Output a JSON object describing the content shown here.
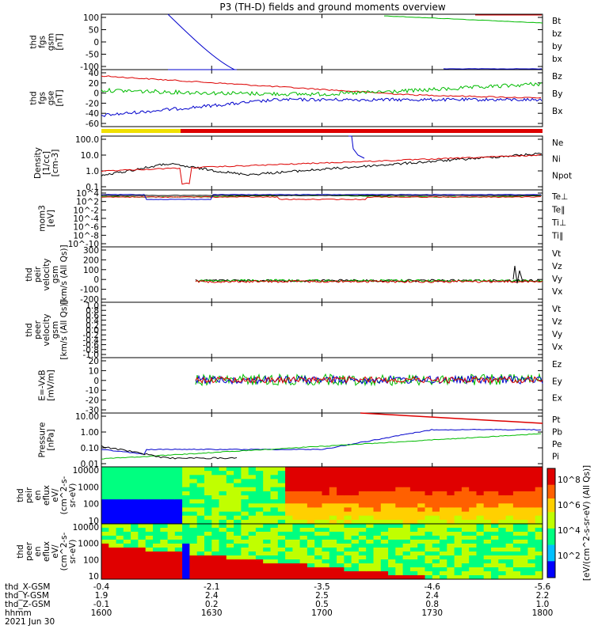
{
  "title": "P3 (TH-D) fields and ground moments overview",
  "chart_data": {
    "type": "line",
    "title": "P3 (TH-D) fields and ground moments overview",
    "date": "2021 Jun 30",
    "x_time_ticks": [
      "1600",
      "1630",
      "1700",
      "1730",
      "1800"
    ],
    "ephemeris": [
      {
        "label": "thd_X-GSM",
        "values": [
          "-0.4",
          "-2.1",
          "-3.5",
          "-4.6",
          "-5.6"
        ]
      },
      {
        "label": "thd_Y-GSM",
        "values": [
          "1.9",
          "2.4",
          "2.5",
          "2.4",
          "2.2"
        ]
      },
      {
        "label": "thd_Z-GSM",
        "values": [
          "-0.1",
          "0.2",
          "0.5",
          "0.8",
          "1.0"
        ]
      },
      {
        "label": "hhmm",
        "values": [
          "1600",
          "1630",
          "1700",
          "1730",
          "1800"
        ]
      }
    ],
    "panels": [
      {
        "ylabel": [
          "thd",
          "fgs",
          "gsm",
          "[nT]"
        ],
        "yticks": [
          "100",
          "50",
          "0",
          "-50",
          "-100"
        ],
        "legend": [
          {
            "text": "Bt",
            "color": "#000000"
          },
          {
            "text": "bz",
            "color": "#dd0000"
          },
          {
            "text": "by",
            "color": "#00bb00"
          },
          {
            "text": "bx",
            "color": "#0000cc"
          }
        ]
      },
      {
        "ylabel": [
          "thd",
          "fgs",
          "gse",
          "[nT]"
        ],
        "yticks": [
          "40",
          "20",
          "0",
          "-20",
          "-40",
          "-60"
        ],
        "legend": [
          {
            "text": "Bz",
            "color": "#dd0000"
          },
          {
            "text": "By",
            "color": "#00bb00"
          },
          {
            "text": "Bx",
            "color": "#0000cc"
          }
        ]
      },
      {
        "ylabel": [
          "Density",
          "[1/cc]",
          "[cm-3]"
        ],
        "yticks": [
          "100.0",
          "10.0",
          "1.0",
          "0.1"
        ],
        "legend": [
          {
            "text": "Ne",
            "color": "#dd0000"
          },
          {
            "text": "Ni",
            "color": "#000000"
          },
          {
            "text": "Npot",
            "color": "#0000cc"
          }
        ]
      },
      {
        "ylabel": [
          "mom3",
          "[eV]"
        ],
        "yticks": [
          "10^4",
          "10^2",
          "10^-2",
          "10^-4",
          "10^-6",
          "10^-8",
          "10^-10"
        ],
        "legend": [
          {
            "text": "Te⊥",
            "color": "#dd0000"
          },
          {
            "text": "Te∥",
            "color": "#000000"
          },
          {
            "text": "Ti⊥",
            "color": "#00bb00"
          },
          {
            "text": "Ti∥",
            "color": "#00bb00"
          }
        ]
      },
      {
        "ylabel": [
          "thd",
          "peir",
          "velocity",
          "gsm",
          "[km/s (All Qs)]"
        ],
        "yticks": [
          "300",
          "200",
          "100",
          "0",
          "-100",
          "-200"
        ],
        "legend": [
          {
            "text": "Vt",
            "color": "#000000"
          },
          {
            "text": "Vz",
            "color": "#dd0000"
          },
          {
            "text": "Vy",
            "color": "#00bb00"
          },
          {
            "text": "Vx",
            "color": "#0000cc"
          }
        ]
      },
      {
        "ylabel": [
          "thd",
          "peer",
          "velocity",
          "gsm",
          "[km/s (All Qs)]"
        ],
        "yticks": [
          "1.0",
          "0.8",
          "0.6",
          "0.4",
          "0.2",
          "0.0",
          "-0.2",
          "-0.4",
          "-0.6",
          "-0.8",
          "-1.0"
        ],
        "legend": [
          {
            "text": "Vt",
            "color": "#000000"
          },
          {
            "text": "Vz",
            "color": "#dd0000"
          },
          {
            "text": "Vy",
            "color": "#00bb00"
          },
          {
            "text": "Vx",
            "color": "#0000cc"
          }
        ]
      },
      {
        "ylabel": [
          "E=-VxB",
          "[mV/m]"
        ],
        "yticks": [
          "20",
          "10",
          "0",
          "-10",
          "-20",
          "-30"
        ],
        "legend": [
          {
            "text": "Ez",
            "color": "#dd0000"
          },
          {
            "text": "Ey",
            "color": "#00bb00"
          },
          {
            "text": "Ex",
            "color": "#0000cc"
          }
        ]
      },
      {
        "ylabel": [
          "Pressure",
          "[nPa]"
        ],
        "yticks": [
          "10.00",
          "1.00",
          "0.10",
          "0.01"
        ],
        "legend": [
          {
            "text": "Pt",
            "color": "#000000"
          },
          {
            "text": "Pb",
            "color": "#dd0000"
          },
          {
            "text": "Pe",
            "color": "#00bb00"
          },
          {
            "text": "Pi",
            "color": "#0000cc"
          }
        ]
      },
      {
        "ylabel": [
          "thd",
          "peir",
          "en",
          "eflux",
          "eV/",
          "(cm^2-s-",
          "sr-eV)"
        ],
        "yticks": [
          "10000",
          "1000",
          "100",
          "10"
        ],
        "legend": []
      },
      {
        "ylabel": [
          "thd",
          "peer",
          "en",
          "eflux",
          "eV/",
          "(cm^2-s-",
          "sr-eV)"
        ],
        "yticks": [
          "10000",
          "1000",
          "100",
          "10"
        ],
        "legend": []
      }
    ],
    "colorbar": {
      "label": "[eV/(cm^2-s-sr-eV) (All Qs)]",
      "ticks": [
        "10^8",
        "10^6",
        "10^4",
        "10^2"
      ]
    }
  },
  "colors": {
    "red": "#dd0000",
    "green": "#00bb00",
    "blue": "#0000cc",
    "black": "#000000",
    "yellow": "#f0e000"
  }
}
